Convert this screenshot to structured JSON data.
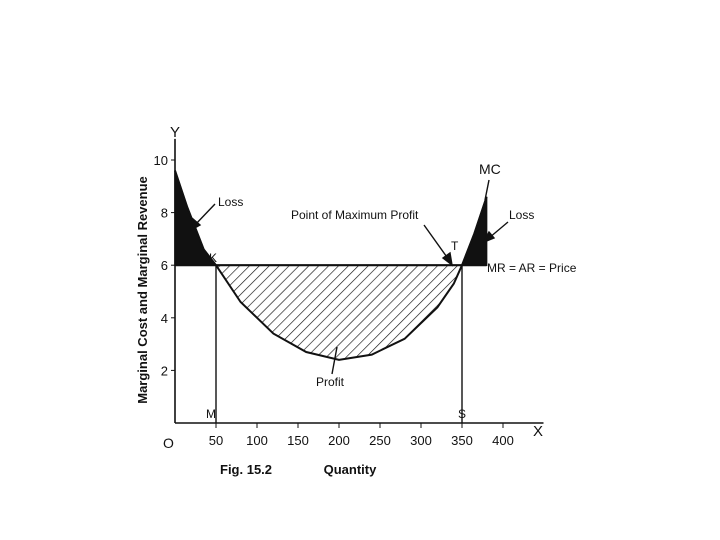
{
  "chart_data": {
    "type": "line",
    "xlabel": "Quantity",
    "ylabel": "Marginal Cost and Marginal Revenue",
    "x_axis_letter": "X",
    "y_axis_letter": "Y",
    "origin_label": "O",
    "figure_label": "Fig. 15.2",
    "xlim": [
      0,
      425
    ],
    "ylim": [
      0,
      10.5
    ],
    "x_ticks": [
      50,
      100,
      150,
      200,
      250,
      300,
      350,
      400
    ],
    "x_tick_labels": [
      "50",
      "100",
      "150",
      "200",
      "250",
      "300",
      "350",
      "400"
    ],
    "y_ticks": [
      2,
      4,
      6,
      8,
      10
    ],
    "y_tick_labels": [
      "2",
      "4",
      "6",
      "8",
      "10"
    ],
    "grid": false,
    "series": [
      {
        "name": "MC",
        "x": [
          0,
          15,
          35,
          50,
          80,
          120,
          160,
          200,
          240,
          280,
          320,
          340,
          350,
          365,
          380
        ],
        "y": [
          9.6,
          8.2,
          6.6,
          6.0,
          4.6,
          3.4,
          2.7,
          2.4,
          2.6,
          3.2,
          4.4,
          5.3,
          6.0,
          7.2,
          8.6
        ]
      },
      {
        "name": "MR = AR = Price",
        "x": [
          0,
          380
        ],
        "y": [
          6.0,
          6.0
        ]
      }
    ],
    "points": [
      {
        "label": "K",
        "x": 50,
        "y": 6
      },
      {
        "label": "T",
        "x": 350,
        "y": 6
      },
      {
        "label": "M",
        "x": 50,
        "y": 0
      },
      {
        "label": "S",
        "x": 350,
        "y": 0
      }
    ],
    "annotations": {
      "loss_left": "Loss",
      "loss_right": "Loss",
      "point_max_profit": "Point of Maximum Profit",
      "profit": "Profit",
      "mc": "MC",
      "mr": "MR = AR = Price"
    }
  }
}
